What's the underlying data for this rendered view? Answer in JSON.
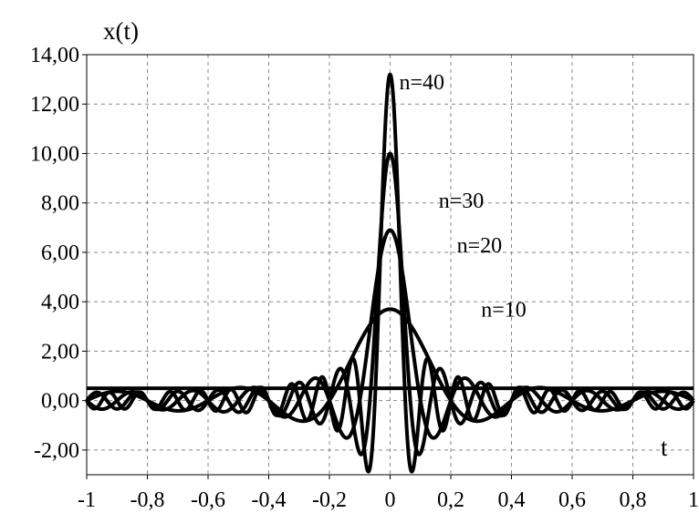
{
  "chart_data": {
    "type": "line",
    "title": "",
    "ylabel": "x(t)",
    "xlabel": "t",
    "xlim": [
      -1,
      1
    ],
    "ylim": [
      -3,
      14
    ],
    "grid": true,
    "legend": "none",
    "x_ticks": [
      -1,
      -0.8,
      -0.6,
      -0.4,
      -0.2,
      0,
      0.2,
      0.4,
      0.6,
      0.8,
      1
    ],
    "x_tick_labels": [
      "-1",
      "-0,8",
      "-0,6",
      "-0,4",
      "-0,2",
      "0",
      "0,2",
      "0,4",
      "0,6",
      "0,8",
      "1"
    ],
    "y_ticks": [
      -2,
      0,
      2,
      4,
      6,
      8,
      10,
      12,
      14
    ],
    "y_tick_labels": [
      "-2,00",
      "0,00",
      "2,00",
      "4,00",
      "6,00",
      "8,00",
      "10,00",
      "12,00",
      "14,00"
    ],
    "horizontal_line_y": 0.5,
    "series": [
      {
        "label": "n=10",
        "n": 10,
        "peak": 3.7
      },
      {
        "label": "n=20",
        "n": 20,
        "peak": 6.9
      },
      {
        "label": "n=30",
        "n": 30,
        "peak": 10.0
      },
      {
        "label": "n=40",
        "n": 40,
        "peak": 13.2
      }
    ],
    "annotations": [
      {
        "text": "n=40",
        "x": 0.03,
        "y": 12.6
      },
      {
        "text": "n=30",
        "x": 0.16,
        "y": 7.8
      },
      {
        "text": "n=20",
        "x": 0.22,
        "y": 6.0
      },
      {
        "text": "n=10",
        "x": 0.3,
        "y": 3.4
      }
    ],
    "color": "#000000"
  }
}
